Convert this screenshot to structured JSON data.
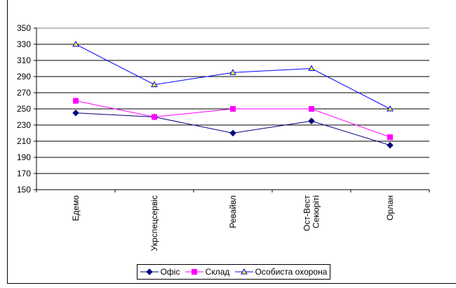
{
  "chart_data": {
    "type": "line",
    "title": "",
    "xlabel": "",
    "ylabel": "",
    "categories": [
      "Едемо",
      "Укрспецсервіс",
      "Ревайвл",
      "Ост-Вест\nСекюріті",
      "Орлан"
    ],
    "ylim": [
      150,
      350
    ],
    "yticks": [
      150,
      170,
      190,
      210,
      230,
      250,
      270,
      290,
      310,
      330,
      350
    ],
    "grid": true,
    "legend": "bottom",
    "series": [
      {
        "name": "Офіс",
        "values": [
          245,
          240,
          220,
          235,
          205
        ],
        "color": "#000080",
        "marker": "diamond"
      },
      {
        "name": "Склад",
        "values": [
          260,
          240,
          250,
          250,
          215
        ],
        "color": "#FF00FF",
        "marker": "square"
      },
      {
        "name": "Особиста охорона",
        "values": [
          330,
          280,
          295,
          300,
          250
        ],
        "color": "#0000FF",
        "marker": "triangle",
        "fill": "#FFFF00"
      }
    ]
  }
}
